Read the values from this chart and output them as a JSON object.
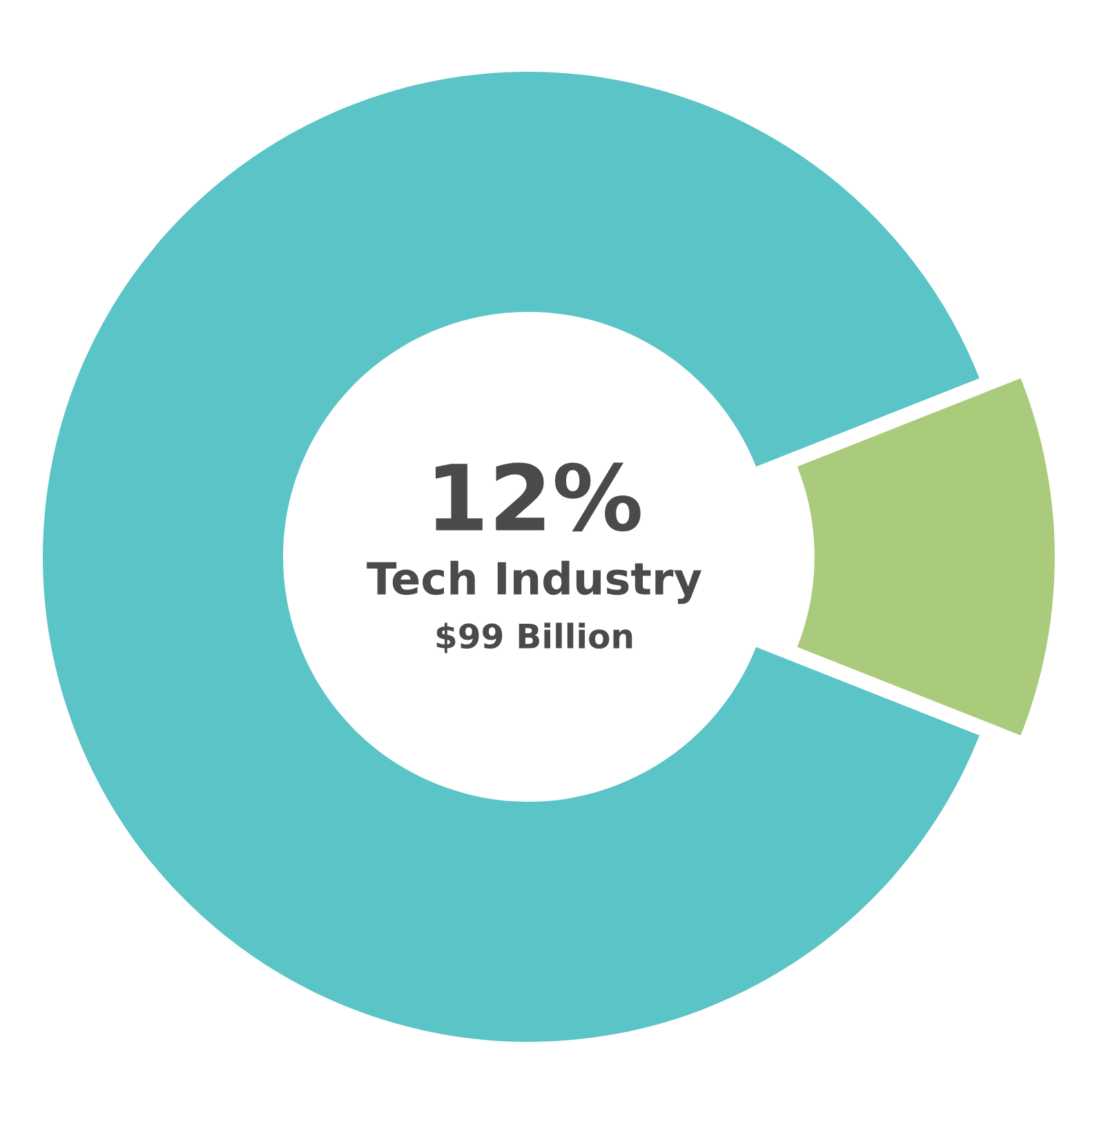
{
  "chart_data": {
    "type": "donut",
    "categories": [
      null,
      null
    ],
    "values": [
      12,
      88
    ],
    "colors": [
      "#a9cb7b",
      "#5bc4c7"
    ],
    "annotations": [
      "12%",
      "Tech Industry",
      "$99 Billion"
    ]
  }
}
